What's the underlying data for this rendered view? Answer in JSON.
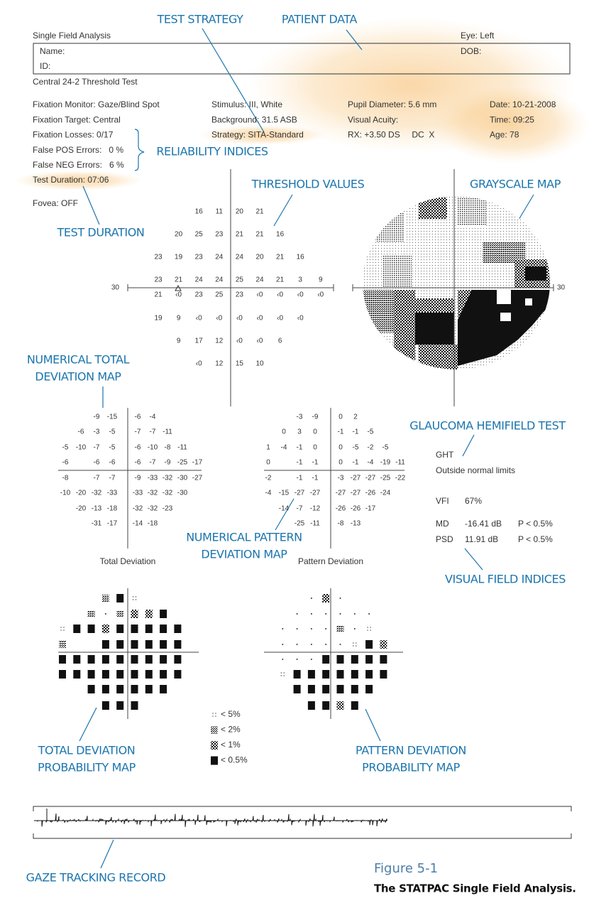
{
  "header": {
    "title": "Single Field Analysis",
    "eye": "Eye: Left",
    "name": "Name:",
    "dob": "DOB:",
    "id": "ID:",
    "test": "Central 24-2 Threshold Test"
  },
  "info": {
    "col1": [
      "Fixation Monitor: Gaze/Blind Spot",
      "Fixation Target: Central",
      "Fixation Losses: 0/17",
      "False POS Errors:   0 %",
      "False NEG Errors:   6 %",
      "Test Duration: 07:06"
    ],
    "fovea": "Fovea: OFF",
    "col2": [
      "Stimulus: III, White",
      "Background: 31.5 ASB",
      "Strategy: SITA-Standard"
    ],
    "col3": [
      "Pupil Diameter: 5.6 mm",
      "Visual Acuity:",
      "RX: +3.50 DS     DC  X"
    ],
    "col4": [
      "Date: 10-21-2008",
      "Time: 09:25",
      "Age: 78"
    ]
  },
  "threshold": {
    "axis_label": "30",
    "rows": [
      [
        16,
        11,
        20,
        21
      ],
      [
        20,
        25,
        23,
        21,
        21,
        16
      ],
      [
        23,
        19,
        23,
        24,
        24,
        20,
        21,
        16
      ],
      [
        23,
        21,
        24,
        24,
        25,
        24,
        21,
        3,
        9
      ],
      [
        21,
        "‹0",
        23,
        25,
        23,
        "‹0",
        "‹0",
        "‹0",
        "‹0"
      ],
      [
        19,
        9,
        "‹0",
        "‹0",
        "‹0",
        "‹0",
        "‹0",
        "‹0"
      ],
      [
        9,
        17,
        12,
        "‹0",
        "‹0",
        6
      ],
      [
        "‹0",
        12,
        15,
        10
      ]
    ]
  },
  "grayscale": {
    "axis_label": "30"
  },
  "total_deviation": {
    "title": "Total Deviation",
    "rows": [
      [
        -9,
        -15,
        -6,
        -4
      ],
      [
        -6,
        -3,
        -5,
        -7,
        -7,
        -11
      ],
      [
        -5,
        -10,
        -7,
        -5,
        -6,
        -10,
        -8,
        -11
      ],
      [
        -6,
        null,
        -6,
        -6,
        -6,
        -7,
        -9,
        -25,
        -17
      ],
      [
        -8,
        null,
        -7,
        -7,
        -9,
        -33,
        -32,
        -30,
        -27
      ],
      [
        -10,
        -20,
        -32,
        -33,
        -33,
        -32,
        -32,
        -30
      ],
      [
        -20,
        -13,
        -18,
        -32,
        -32,
        -23
      ],
      [
        -31,
        -17,
        -14,
        -18
      ]
    ]
  },
  "pattern_deviation": {
    "title": "Pattern Deviation",
    "rows": [
      [
        -3,
        -9,
        0,
        2
      ],
      [
        0,
        3,
        0,
        -1,
        -1,
        -5
      ],
      [
        1,
        -4,
        -1,
        0,
        0,
        -5,
        -2,
        -5
      ],
      [
        0,
        null,
        -1,
        -1,
        0,
        -1,
        -4,
        -19,
        -11
      ],
      [
        -2,
        null,
        -1,
        -1,
        -3,
        -27,
        -27,
        -25,
        -22
      ],
      [
        -4,
        -15,
        -27,
        -27,
        -27,
        -27,
        -26,
        -24
      ],
      [
        -14,
        -7,
        -12,
        -26,
        -26,
        -17
      ],
      [
        -25,
        -11,
        -8,
        -13
      ]
    ]
  },
  "legend": [
    "< 5%",
    "< 2%",
    "< 1%",
    "< 0.5%"
  ],
  "ght": {
    "label": "GHT",
    "result": "Outside normal limits"
  },
  "indices": [
    {
      "label": "VFI",
      "value": "67%"
    },
    {
      "label": "MD",
      "value": "-16.41 dB",
      "p": "P < 0.5%"
    },
    {
      "label": "PSD",
      "value": "11.91 dB",
      "p": "P < 0.5%"
    }
  ],
  "annotations": {
    "test_strategy": [
      "TEST STRATEGY"
    ],
    "patient_data": [
      "PATIENT DATA"
    ],
    "reliability_indices": [
      "RELIABILITY INDICES"
    ],
    "threshold_values": [
      "THRESHOLD VALUES"
    ],
    "grayscale_map": [
      "GRAYSCALE MAP"
    ],
    "test_duration": [
      "TEST DURATION"
    ],
    "numerical_total_deviation_map": [
      "NUMERICAL TOTAL",
      "DEVIATION MAP"
    ],
    "glaucoma_hemifield_test": [
      "GLAUCOMA HEMIFIELD TEST"
    ],
    "numerical_pattern_deviation_map": [
      "NUMERICAL PATTERN",
      "DEVIATION MAP"
    ],
    "visual_field_indices": [
      "VISUAL FIELD INDICES"
    ],
    "total_deviation_probability_map": [
      "TOTAL DEVIATION",
      "PROBABILITY MAP"
    ],
    "pattern_deviation_probability_map": [
      "PATTERN DEVIATION",
      "PROBABILITY MAP"
    ],
    "gaze_tracking_record": [
      "GAZE TRACKING RECORD"
    ]
  },
  "caption": {
    "figure": "Figure 5-1",
    "text": "The STATPAC Single Field Analysis."
  }
}
